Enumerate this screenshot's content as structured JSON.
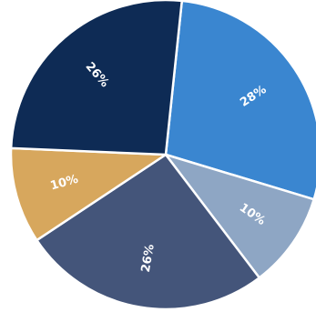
{
  "chart_data": {
    "type": "pie",
    "title": "",
    "legend": "none",
    "slices": [
      {
        "label": "28%",
        "value": 28,
        "color": "#3a86d0"
      },
      {
        "label": "10%",
        "value": 10,
        "color": "#8ea6c4"
      },
      {
        "label": "26%",
        "value": 26,
        "color": "#44557a"
      },
      {
        "label": "10%",
        "value": 10,
        "color": "#d7a75d"
      },
      {
        "label": "26%",
        "value": 26,
        "color": "#0e2b55"
      }
    ]
  }
}
